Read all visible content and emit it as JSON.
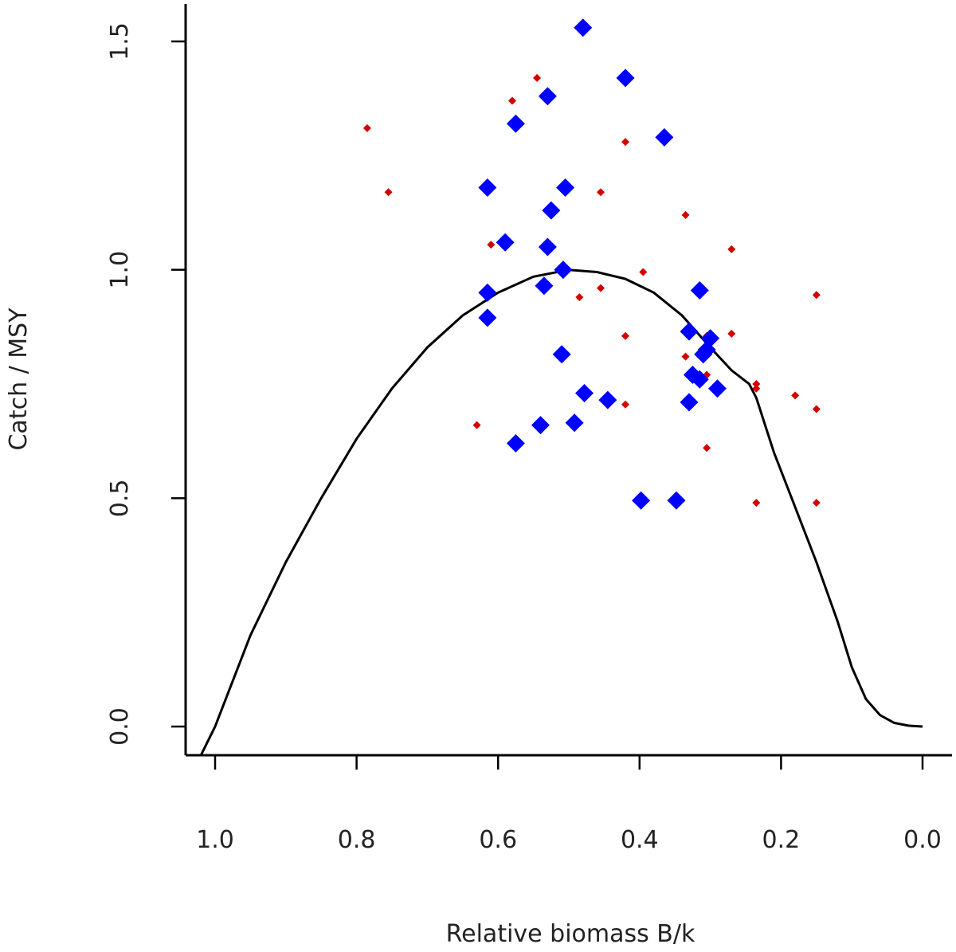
{
  "chart_data": {
    "type": "scatter",
    "title": "",
    "xlabel": "Relative biomass B/k",
    "ylabel": "Catch / MSY",
    "xlim": [
      1.02,
      -0.01
    ],
    "ylim": [
      -0.06,
      1.57
    ],
    "x_reversed": true,
    "x_ticks": [
      1.0,
      0.8,
      0.6,
      0.4,
      0.2,
      0.0
    ],
    "x_tick_labels": [
      "1.0",
      "0.8",
      "0.6",
      "0.4",
      "0.2",
      "0.0"
    ],
    "y_ticks": [
      0.0,
      0.5,
      1.0,
      1.5
    ],
    "y_tick_labels": [
      "0.0",
      "0.5",
      "1.0",
      "1.5"
    ],
    "colors": {
      "blue": "#0000ff",
      "red": "#d40000",
      "curve": "#000000"
    },
    "series": [
      {
        "name": "blue points",
        "marker": "diamond",
        "color": "#0000ff",
        "points": [
          {
            "x": 0.48,
            "y": 1.53
          },
          {
            "x": 0.42,
            "y": 1.42
          },
          {
            "x": 0.53,
            "y": 1.38
          },
          {
            "x": 0.575,
            "y": 1.32
          },
          {
            "x": 0.365,
            "y": 1.29
          },
          {
            "x": 0.615,
            "y": 1.18
          },
          {
            "x": 0.505,
            "y": 1.18
          },
          {
            "x": 0.525,
            "y": 1.13
          },
          {
            "x": 0.59,
            "y": 1.06
          },
          {
            "x": 0.53,
            "y": 1.05
          },
          {
            "x": 0.508,
            "y": 1.0
          },
          {
            "x": 0.535,
            "y": 0.965
          },
          {
            "x": 0.315,
            "y": 0.955
          },
          {
            "x": 0.615,
            "y": 0.95
          },
          {
            "x": 0.615,
            "y": 0.895
          },
          {
            "x": 0.33,
            "y": 0.865
          },
          {
            "x": 0.3,
            "y": 0.85
          },
          {
            "x": 0.305,
            "y": 0.825
          },
          {
            "x": 0.51,
            "y": 0.815
          },
          {
            "x": 0.31,
            "y": 0.815
          },
          {
            "x": 0.325,
            "y": 0.77
          },
          {
            "x": 0.315,
            "y": 0.76
          },
          {
            "x": 0.29,
            "y": 0.74
          },
          {
            "x": 0.478,
            "y": 0.73
          },
          {
            "x": 0.445,
            "y": 0.715
          },
          {
            "x": 0.33,
            "y": 0.71
          },
          {
            "x": 0.54,
            "y": 0.66
          },
          {
            "x": 0.492,
            "y": 0.665
          },
          {
            "x": 0.575,
            "y": 0.62
          },
          {
            "x": 0.398,
            "y": 0.495
          },
          {
            "x": 0.348,
            "y": 0.495
          }
        ]
      },
      {
        "name": "red points",
        "marker": "small-diamond",
        "color": "#d40000",
        "points": [
          {
            "x": 0.48,
            "y": 1.52
          },
          {
            "x": 0.545,
            "y": 1.42
          },
          {
            "x": 0.58,
            "y": 1.37
          },
          {
            "x": 0.785,
            "y": 1.31
          },
          {
            "x": 0.42,
            "y": 1.28
          },
          {
            "x": 0.755,
            "y": 1.17
          },
          {
            "x": 0.455,
            "y": 1.17
          },
          {
            "x": 0.335,
            "y": 1.12
          },
          {
            "x": 0.61,
            "y": 1.055
          },
          {
            "x": 0.27,
            "y": 1.045
          },
          {
            "x": 0.395,
            "y": 0.995
          },
          {
            "x": 0.455,
            "y": 0.96
          },
          {
            "x": 0.15,
            "y": 0.945
          },
          {
            "x": 0.485,
            "y": 0.94
          },
          {
            "x": 0.61,
            "y": 0.895
          },
          {
            "x": 0.27,
            "y": 0.86
          },
          {
            "x": 0.42,
            "y": 0.855
          },
          {
            "x": 0.305,
            "y": 0.855
          },
          {
            "x": 0.335,
            "y": 0.81
          },
          {
            "x": 0.305,
            "y": 0.77
          },
          {
            "x": 0.235,
            "y": 0.75
          },
          {
            "x": 0.235,
            "y": 0.74
          },
          {
            "x": 0.18,
            "y": 0.725
          },
          {
            "x": 0.42,
            "y": 0.705
          },
          {
            "x": 0.15,
            "y": 0.695
          },
          {
            "x": 0.63,
            "y": 0.66
          },
          {
            "x": 0.305,
            "y": 0.61
          },
          {
            "x": 0.235,
            "y": 0.49
          },
          {
            "x": 0.15,
            "y": 0.49
          }
        ]
      }
    ],
    "curve": {
      "name": "production curve",
      "color": "#000000",
      "points": [
        [
          1.02,
          -0.08
        ],
        [
          1.0,
          0.0
        ],
        [
          0.95,
          0.2
        ],
        [
          0.9,
          0.36
        ],
        [
          0.85,
          0.5
        ],
        [
          0.8,
          0.63
        ],
        [
          0.75,
          0.74
        ],
        [
          0.7,
          0.83
        ],
        [
          0.65,
          0.9
        ],
        [
          0.6,
          0.95
        ],
        [
          0.55,
          0.985
        ],
        [
          0.5,
          1.0
        ],
        [
          0.46,
          0.995
        ],
        [
          0.42,
          0.98
        ],
        [
          0.38,
          0.95
        ],
        [
          0.34,
          0.9
        ],
        [
          0.3,
          0.83
        ],
        [
          0.27,
          0.78
        ],
        [
          0.245,
          0.75
        ],
        [
          0.235,
          0.72
        ],
        [
          0.21,
          0.6
        ],
        [
          0.18,
          0.48
        ],
        [
          0.15,
          0.36
        ],
        [
          0.12,
          0.23
        ],
        [
          0.1,
          0.13
        ],
        [
          0.08,
          0.06
        ],
        [
          0.06,
          0.025
        ],
        [
          0.04,
          0.008
        ],
        [
          0.02,
          0.002
        ],
        [
          0.0,
          0.0
        ]
      ]
    }
  }
}
